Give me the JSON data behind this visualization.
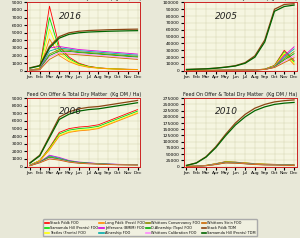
{
  "title": "Feed On Offer & Total Dry Matter  (Kg DM / Ha)",
  "years": [
    "2016",
    "2005",
    "2006",
    "2010"
  ],
  "months": [
    "Jan",
    "Feb",
    "Mar",
    "Apr",
    "May",
    "Jun",
    "Jul",
    "Aug",
    "Sep",
    "Oct",
    "Nov",
    "Dec"
  ],
  "fig_bg": "#e8e8d8",
  "panel_bg": "#f5f5e0",
  "grid_color": "#c8c8a0",
  "border_color": "#cc2222",
  "panels": {
    "2016": {
      "ylim": [
        0,
        9000
      ],
      "ytick_step": 1000,
      "foo_lines": {
        "Stack Pddk FOO": {
          "color": "#ff0000",
          "vals": [
            100,
            300,
            8500,
            3200,
            1800,
            1000,
            600,
            400,
            300,
            250,
            200,
            180
          ]
        },
        "Samamda Hill (Fronts) FOO": {
          "color": "#00dd00",
          "vals": [
            100,
            300,
            7000,
            2800,
            1600,
            900,
            550,
            380,
            280,
            230,
            190,
            170
          ]
        },
        "Textles (Fronts) FOO": {
          "color": "#ffff00",
          "vals": [
            100,
            280,
            5500,
            2400,
            1400,
            800,
            500,
            360,
            270,
            220,
            185,
            165
          ]
        },
        "Long Pddk (Frost) FOO": {
          "color": "#ff8800",
          "vals": [
            100,
            250,
            4200,
            2000,
            1200,
            720,
            460,
            340,
            260,
            210,
            178,
            158
          ]
        },
        "Jeffersons (BMIM) FOO": {
          "color": "#dd00dd",
          "vals": [
            100,
            200,
            3000,
            3200,
            3000,
            2800,
            2700,
            2600,
            2500,
            2400,
            2300,
            2200
          ]
        },
        "Alnership FOO": {
          "color": "#00aaaa",
          "vals": [
            100,
            180,
            2600,
            3000,
            2850,
            2650,
            2550,
            2450,
            2350,
            2250,
            2150,
            2050
          ]
        },
        "Whittons Conservancy FOO": {
          "color": "#888800",
          "vals": [
            100,
            160,
            2200,
            2800,
            2700,
            2500,
            2400,
            2300,
            2200,
            2100,
            2000,
            1900
          ]
        },
        "D.Alnership (Tops) FOO": {
          "color": "#00aa00",
          "vals": [
            100,
            150,
            2000,
            2600,
            2550,
            2400,
            2300,
            2200,
            2100,
            2000,
            1900,
            1800
          ]
        },
        "Whittons Calibration FOO": {
          "color": "#ff88ff",
          "vals": [
            100,
            140,
            1800,
            2400,
            2400,
            2250,
            2150,
            2050,
            1950,
            1850,
            1750,
            1650
          ]
        },
        "Whittons Strin FOO": {
          "color": "#cc6600",
          "vals": [
            100,
            130,
            1500,
            2200,
            2200,
            2100,
            2000,
            1900,
            1800,
            1700,
            1600,
            1500
          ]
        }
      },
      "tdm_lines": {
        "Stack Pddk TDM": {
          "color": "#8B4513",
          "vals": [
            400,
            700,
            3200,
            4500,
            5000,
            5200,
            5300,
            5350,
            5400,
            5430,
            5460,
            5480
          ]
        },
        "Samamda Hill (Fronts) TDM": {
          "color": "#006400",
          "vals": [
            350,
            650,
            3000,
            4300,
            4800,
            5000,
            5100,
            5150,
            5200,
            5230,
            5260,
            5280
          ]
        }
      }
    },
    "2005": {
      "ylim": [
        0,
        100000
      ],
      "ytick_step": 10000,
      "foo_lines": {
        "Stack Pddk FOO": {
          "color": "#ff0000",
          "vals": [
            500,
            600,
            700,
            800,
            900,
            1000,
            1200,
            1500,
            2500,
            8000,
            30000,
            15000
          ]
        },
        "Samamda Hill (Fronts) FOO": {
          "color": "#00dd00",
          "vals": [
            500,
            600,
            700,
            800,
            900,
            1000,
            1200,
            1500,
            2400,
            7500,
            28000,
            13000
          ]
        },
        "Textles (Fronts) FOO": {
          "color": "#ffff00",
          "vals": [
            500,
            580,
            680,
            780,
            880,
            980,
            1150,
            1450,
            2300,
            7000,
            26000,
            11000
          ]
        },
        "Long Pddk (Frost) FOO": {
          "color": "#ff8800",
          "vals": [
            480,
            560,
            660,
            760,
            860,
            960,
            1100,
            1400,
            2200,
            6500,
            24000,
            9000
          ]
        },
        "Jeffersons (BMIM) FOO": {
          "color": "#dd00dd",
          "vals": [
            450,
            540,
            640,
            740,
            840,
            940,
            1050,
            1350,
            2100,
            6000,
            22000,
            35000
          ]
        },
        "Alnership FOO": {
          "color": "#00aaaa",
          "vals": [
            440,
            530,
            620,
            720,
            820,
            920,
            1030,
            1320,
            2050,
            5800,
            20000,
            32000
          ]
        },
        "Whittons Conservancy FOO": {
          "color": "#888800",
          "vals": [
            430,
            520,
            610,
            710,
            810,
            910,
            1010,
            1300,
            2000,
            5500,
            18000,
            28000
          ]
        },
        "D.Alnership (Tops) FOO": {
          "color": "#00aa00",
          "vals": [
            420,
            510,
            600,
            700,
            800,
            900,
            990,
            1280,
            1950,
            5200,
            16000,
            25000
          ]
        },
        "Whittons Calibration FOO": {
          "color": "#ff88ff",
          "vals": [
            410,
            500,
            590,
            690,
            790,
            890,
            970,
            1260,
            1900,
            5000,
            14000,
            22000
          ]
        },
        "Whittons Strin FOO": {
          "color": "#cc6600",
          "vals": [
            400,
            490,
            580,
            680,
            780,
            880,
            950,
            1240,
            1850,
            4800,
            12000,
            19000
          ]
        }
      },
      "tdm_lines": {
        "Stack Pddk TDM": {
          "color": "#8B4513",
          "vals": [
            2000,
            2500,
            3000,
            4000,
            5500,
            7500,
            12000,
            22000,
            45000,
            90000,
            97000,
            98000
          ]
        },
        "Samamda Hill (Fronts) TDM": {
          "color": "#006400",
          "vals": [
            1800,
            2300,
            2800,
            3800,
            5200,
            7000,
            11000,
            20000,
            42000,
            87000,
            94000,
            96000
          ]
        }
      }
    },
    "2006": {
      "ylim": [
        0,
        9000
      ],
      "ytick_step": 1000,
      "foo_lines": {
        "Stack Pddk FOO": {
          "color": "#ff0000",
          "vals": [
            200,
            800,
            2500,
            4500,
            5000,
            5200,
            5300,
            5500,
            6000,
            6500,
            7000,
            7500
          ]
        },
        "Samamda Hill (Fronts) FOO": {
          "color": "#00dd00",
          "vals": [
            200,
            780,
            2400,
            4300,
            4800,
            5000,
            5100,
            5300,
            5800,
            6300,
            6800,
            7300
          ]
        },
        "Textles (Fronts) FOO": {
          "color": "#ffff00",
          "vals": [
            180,
            760,
            2300,
            4100,
            4600,
            4800,
            4900,
            5100,
            5600,
            6100,
            6600,
            7100
          ]
        },
        "Long Pddk (Frost) FOO": {
          "color": "#ff8800",
          "vals": [
            170,
            740,
            2200,
            4000,
            4500,
            4700,
            4800,
            5000,
            5500,
            6000,
            6500,
            7000
          ]
        },
        "Jeffersons (BMIM) FOO": {
          "color": "#dd00dd",
          "vals": [
            160,
            600,
            1500,
            1200,
            800,
            600,
            500,
            400,
            350,
            300,
            280,
            260
          ]
        },
        "Alnership FOO": {
          "color": "#00aaaa",
          "vals": [
            150,
            580,
            1400,
            1100,
            750,
            560,
            470,
            380,
            330,
            285,
            265,
            245
          ]
        },
        "Whittons Conservancy FOO": {
          "color": "#888800",
          "vals": [
            140,
            560,
            1300,
            1000,
            700,
            520,
            440,
            360,
            310,
            270,
            250,
            230
          ]
        },
        "D.Alnership (Tops) FOO": {
          "color": "#00aa00",
          "vals": [
            130,
            540,
            1200,
            950,
            660,
            490,
            415,
            345,
            295,
            257,
            238,
            220
          ]
        },
        "Whittons Calibration FOO": {
          "color": "#ff88ff",
          "vals": [
            120,
            520,
            1100,
            900,
            620,
            460,
            390,
            330,
            280,
            244,
            226,
            210
          ]
        },
        "Whittons Strin FOO": {
          "color": "#cc6600",
          "vals": [
            110,
            500,
            1000,
            850,
            580,
            430,
            365,
            315,
            265,
            231,
            214,
            200
          ]
        }
      },
      "tdm_lines": {
        "Stack Pddk TDM": {
          "color": "#8B4513",
          "vals": [
            500,
            1500,
            4000,
            6500,
            7200,
            7600,
            7800,
            7900,
            8100,
            8300,
            8500,
            8700
          ]
        },
        "Samamda Hill (Fronts) TDM": {
          "color": "#006400",
          "vals": [
            450,
            1400,
            3800,
            6200,
            6900,
            7300,
            7500,
            7600,
            7800,
            8000,
            8200,
            8400
          ]
        }
      }
    },
    "2010": {
      "ylim": [
        0,
        275000
      ],
      "ytick_step": 25000,
      "foo_lines": {
        "Stack Pddk FOO": {
          "color": "#ff0000",
          "vals": [
            1000,
            2000,
            5000,
            12000,
            20000,
            18000,
            15000,
            12000,
            10000,
            9000,
            8000,
            7000
          ]
        },
        "Samamda Hill (Fronts) FOO": {
          "color": "#00dd00",
          "vals": [
            900,
            1900,
            4800,
            11500,
            19000,
            17500,
            14500,
            11500,
            9600,
            8700,
            7700,
            6700
          ]
        },
        "Textles (Fronts) FOO": {
          "color": "#ffff00",
          "vals": [
            850,
            1800,
            4600,
            11000,
            18000,
            17000,
            14000,
            11000,
            9200,
            8400,
            7400,
            6400
          ]
        },
        "Long Pddk (Frost) FOO": {
          "color": "#ff8800",
          "vals": [
            800,
            1700,
            4400,
            10500,
            17500,
            16500,
            13500,
            10500,
            8800,
            8100,
            7100,
            6100
          ]
        },
        "Jeffersons (BMIM) FOO": {
          "color": "#dd00dd",
          "vals": [
            750,
            1600,
            4200,
            10000,
            17000,
            16000,
            13000,
            10000,
            8400,
            7800,
            6800,
            5800
          ]
        },
        "Alnership FOO": {
          "color": "#00aaaa",
          "vals": [
            700,
            1500,
            4000,
            9500,
            16500,
            15500,
            12500,
            9500,
            8000,
            7500,
            6500,
            5500
          ]
        },
        "Whittons Conservancy FOO": {
          "color": "#888800",
          "vals": [
            650,
            1400,
            3800,
            9000,
            16000,
            15000,
            12000,
            9000,
            7600,
            7200,
            6200,
            5200
          ]
        },
        "D.Alnership (Tops) FOO": {
          "color": "#00aa00",
          "vals": [
            620,
            1350,
            3700,
            8700,
            15500,
            14500,
            11700,
            8700,
            7300,
            6900,
            5900,
            4900
          ]
        },
        "Whittons Calibration FOO": {
          "color": "#ff88ff",
          "vals": [
            590,
            1300,
            3600,
            8400,
            15000,
            14000,
            11400,
            8400,
            7000,
            6600,
            5600,
            4600
          ]
        },
        "Whittons Strin FOO": {
          "color": "#cc6600",
          "vals": [
            560,
            1250,
            3500,
            8100,
            14500,
            13500,
            11100,
            8100,
            6700,
            6300,
            5300,
            4300
          ]
        }
      },
      "tdm_lines": {
        "Stack Pddk TDM": {
          "color": "#8B4513",
          "vals": [
            5000,
            15000,
            40000,
            80000,
            130000,
            175000,
            210000,
            235000,
            250000,
            260000,
            265000,
            268000
          ]
        },
        "Samamda Hill (Fronts) TDM": {
          "color": "#006400",
          "vals": [
            4500,
            14000,
            38000,
            76000,
            124000,
            167000,
            200000,
            225000,
            240000,
            250000,
            255000,
            258000
          ]
        }
      }
    }
  },
  "legend_rows": [
    [
      {
        "label": "Stack Pddk FOO",
        "color": "#ff0000"
      },
      {
        "label": "Samamda Hill (Fronts) FOO",
        "color": "#00dd00"
      },
      {
        "label": "Textles (Fronts) FOO",
        "color": "#ffff00"
      },
      {
        "label": "Long Pddk (Frost) FOO",
        "color": "#ff8800"
      }
    ],
    [
      {
        "label": "Jeffersons (BMIM) FOO",
        "color": "#dd00dd"
      },
      {
        "label": "Alnership FOO",
        "color": "#00aaaa"
      },
      {
        "label": "Whittons Conservancy FOO",
        "color": "#888800"
      },
      {
        "label": "D.Alnership (Tops) FOO",
        "color": "#00aa00"
      }
    ],
    [
      {
        "label": "Whittons Calibration FOO",
        "color": "#ff88ff"
      },
      {
        "label": "Whittons Strin FOO",
        "color": "#cc6600"
      },
      {
        "label": "Stack Pddk TDM",
        "color": "#8B4513"
      },
      {
        "label": "Samamda Hill (Fronts) TDM",
        "color": "#006400"
      }
    ]
  ]
}
